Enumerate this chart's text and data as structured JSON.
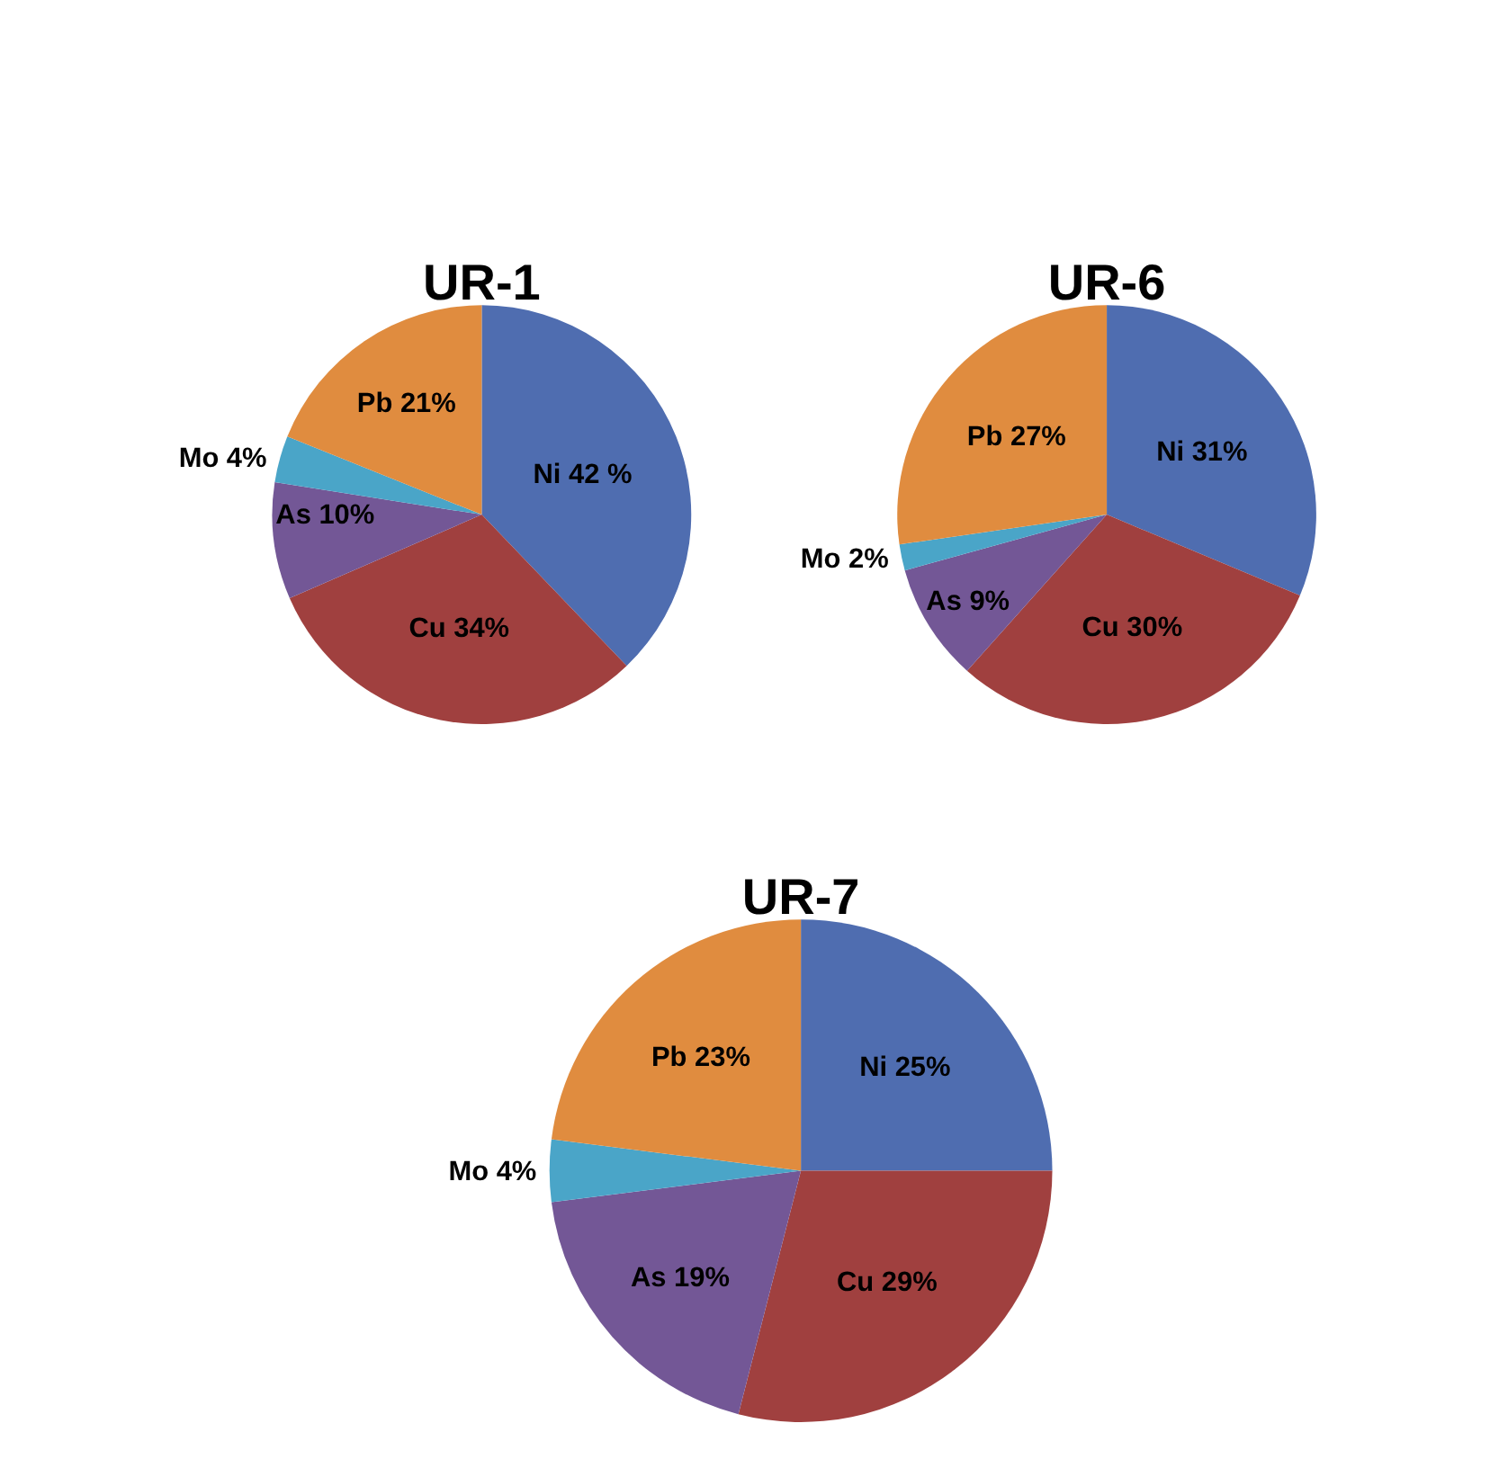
{
  "chart_data": [
    {
      "type": "pie",
      "title": "UR-1",
      "categories": [
        "Ni",
        "Cu",
        "As",
        "Mo",
        "Pb"
      ],
      "values": [
        42,
        34,
        10,
        4,
        21
      ],
      "value_labels": [
        "42 %",
        "34%",
        "10%",
        "4%",
        "21%"
      ],
      "colors": [
        "#4f6db0",
        "#a0403f",
        "#735796",
        "#4aa5c8",
        "#e08c3f"
      ]
    },
    {
      "type": "pie",
      "title": "UR-6",
      "categories": [
        "Ni",
        "Cu",
        "As",
        "Mo",
        "Pb"
      ],
      "values": [
        31,
        30,
        9,
        2,
        27
      ],
      "value_labels": [
        "31%",
        "30%",
        "9%",
        "2%",
        "27%"
      ],
      "colors": [
        "#4f6db0",
        "#a0403f",
        "#735796",
        "#4aa5c8",
        "#e08c3f"
      ]
    },
    {
      "type": "pie",
      "title": "UR-7",
      "categories": [
        "Ni",
        "Cu",
        "As",
        "Mo",
        "Pb"
      ],
      "values": [
        25,
        29,
        19,
        4,
        23
      ],
      "value_labels": [
        "25%",
        "29%",
        "19%",
        "4%",
        "23%"
      ],
      "colors": [
        "#4f6db0",
        "#a0403f",
        "#735796",
        "#4aa5c8",
        "#e08c3f"
      ]
    }
  ]
}
